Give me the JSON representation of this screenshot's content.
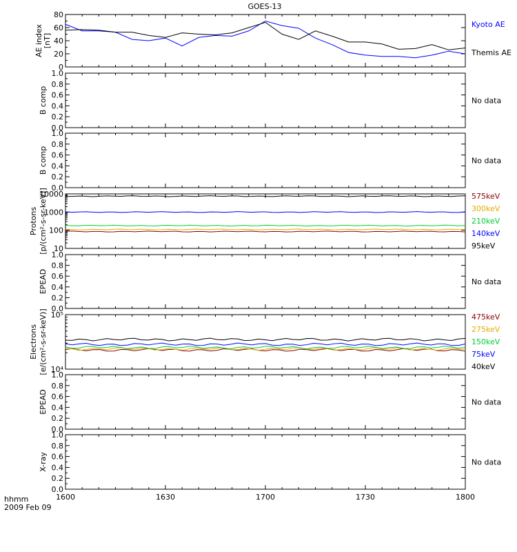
{
  "title": "GOES-13",
  "time_axis": {
    "label_line1": "hhmm",
    "label_line2": "2009 Feb 09",
    "ticks": [
      "1600",
      "1630",
      "1700",
      "1730",
      "1800"
    ]
  },
  "colors": {
    "kyoto": "#0000ff",
    "themis": "#000000",
    "p575": "#8b0000",
    "p300": "#e6a800",
    "p210": "#00cc33",
    "p140": "#0000ff",
    "p95": "#000000",
    "e475": "#8b0000",
    "e275": "#e6a800",
    "e150": "#00cc33",
    "e75": "#0000ff",
    "e40": "#000000"
  },
  "chart_data": [
    {
      "type": "line",
      "ylabel": "AE index [nT]",
      "ylim": [
        0,
        80
      ],
      "yticks": [
        "0",
        "20",
        "40",
        "60",
        "80"
      ],
      "x_time_minutes_after_1600": [
        0,
        5,
        10,
        15,
        20,
        25,
        30,
        35,
        40,
        45,
        50,
        55,
        60,
        65,
        70,
        75,
        80,
        85,
        90,
        95,
        100,
        105,
        110,
        115,
        120
      ],
      "series": [
        {
          "name": "Kyoto AE",
          "color_key": "kyoto",
          "values": [
            65,
            55,
            55,
            53,
            42,
            40,
            44,
            32,
            45,
            48,
            47,
            55,
            70,
            63,
            59,
            44,
            34,
            22,
            18,
            16,
            16,
            14,
            18,
            24,
            20
          ]
        },
        {
          "name": "Themis AE",
          "color_key": "themis",
          "values": [
            56,
            57,
            56,
            53,
            53,
            48,
            45,
            52,
            50,
            49,
            52,
            60,
            68,
            50,
            42,
            55,
            47,
            38,
            38,
            35,
            27,
            28,
            34,
            26,
            29
          ]
        }
      ]
    },
    {
      "type": "line",
      "ylabel": "B comp",
      "ylim": [
        0,
        1
      ],
      "yticks": [
        "0.0",
        "0.2",
        "0.4",
        "0.6",
        "0.8",
        "1.0"
      ],
      "note": "No data",
      "series": []
    },
    {
      "type": "line",
      "ylabel": "B comp",
      "ylim": [
        0,
        1
      ],
      "yticks": [
        "0.0",
        "0.2",
        "0.4",
        "0.6",
        "0.8",
        "1.0"
      ],
      "note": "No data",
      "series": []
    },
    {
      "type": "line",
      "ylabel": "Protons [p/(cm2-s-sr-keV)]",
      "ylabel_line1": "Protons",
      "ylabel_line2": "[p/(cm²-s-sr-keV)]",
      "yscale": "log",
      "ylim": [
        10,
        10000
      ],
      "yticks": [
        "10",
        "100",
        "1000",
        "10000"
      ],
      "series": [
        {
          "name": "575keV",
          "color_key": "p575",
          "level": 85
        },
        {
          "name": "300keV",
          "color_key": "p300",
          "level": 110
        },
        {
          "name": "210keV",
          "color_key": "p210",
          "level": 180
        },
        {
          "name": "140keV",
          "color_key": "p140",
          "level": 1000
        },
        {
          "name": "95keV",
          "color_key": "p95",
          "level": 7500
        }
      ]
    },
    {
      "type": "line",
      "ylabel": "EPEAD",
      "ylim": [
        0,
        1
      ],
      "yticks": [
        "0.0",
        "0.2",
        "0.4",
        "0.6",
        "0.8",
        "1.0"
      ],
      "note": "No data",
      "series": []
    },
    {
      "type": "line",
      "ylabel": "Electrons [e/(cm2-s-sr-keV)]",
      "ylabel_line1": "Electrons",
      "ylabel_line2": "[e/(cm²-s-sr-keV)]",
      "yscale": "log",
      "ylim": [
        10000,
        100000
      ],
      "yticks": [
        "10⁴",
        "10⁵"
      ],
      "series": [
        {
          "name": "475keV",
          "color_key": "e475",
          "level": 22500
        },
        {
          "name": "275keV",
          "color_key": "e275",
          "level": 23500
        },
        {
          "name": "150keV",
          "color_key": "e150",
          "level": 25000
        },
        {
          "name": "75keV",
          "color_key": "e75",
          "level": 28500
        },
        {
          "name": "40keV",
          "color_key": "e40",
          "level": 35000
        }
      ]
    },
    {
      "type": "line",
      "ylabel": "EPEAD",
      "ylim": [
        0,
        1
      ],
      "yticks": [
        "0.0",
        "0.2",
        "0.4",
        "0.6",
        "0.8",
        "1.0"
      ],
      "note": "No data",
      "series": []
    },
    {
      "type": "line",
      "ylabel": "X-ray",
      "ylim": [
        0,
        1
      ],
      "yticks": [
        "0.0",
        "0.2",
        "0.4",
        "0.6",
        "0.8",
        "1.0"
      ],
      "note": "No data",
      "series": []
    }
  ]
}
